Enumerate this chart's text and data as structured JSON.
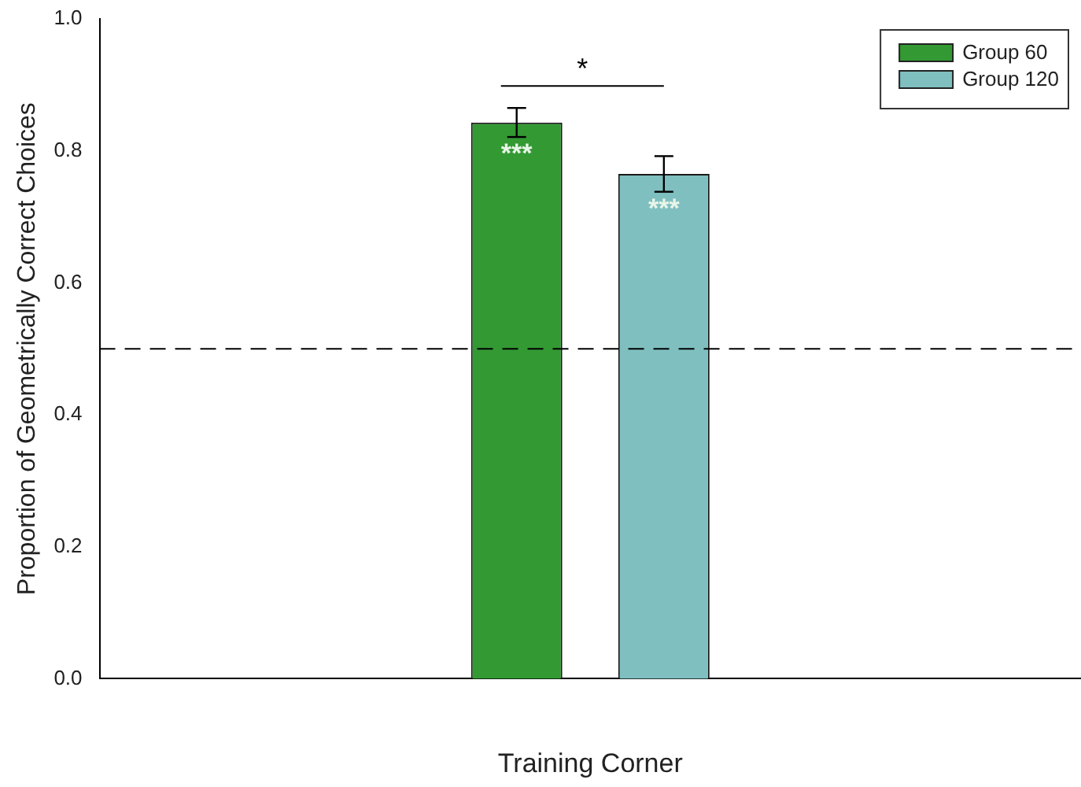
{
  "chart_data": {
    "type": "bar",
    "xlabel": "Training Corner",
    "ylabel": "Proportion of Geometrically Correct Choices",
    "categories": [
      null
    ],
    "series": [
      {
        "name": "Group 60",
        "color": "#339933",
        "values": [
          0.843
        ],
        "errors": [
          0.022
        ],
        "value_labels": [
          "***"
        ]
      },
      {
        "name": "Group 120",
        "color": "#7fbfc0",
        "values": [
          0.765
        ],
        "errors": [
          0.027
        ],
        "value_labels": [
          "***"
        ]
      }
    ],
    "ylim": [
      0,
      1.0
    ],
    "yticks": [
      {
        "value": 0,
        "label": "0.0"
      },
      {
        "value": 0.2,
        "label": "0.2"
      },
      {
        "value": 0.4,
        "label": "0.4"
      },
      {
        "value": 0.6,
        "label": "0.6"
      },
      {
        "value": 0.8,
        "label": "0.8"
      },
      {
        "value": 1.0,
        "label": "1.0"
      }
    ],
    "ref_lines": [
      {
        "axis": "y",
        "value": 0.5,
        "line_style": "dashed"
      }
    ],
    "annotations": [
      "*"
    ],
    "legend": "top right",
    "grid": false
  }
}
